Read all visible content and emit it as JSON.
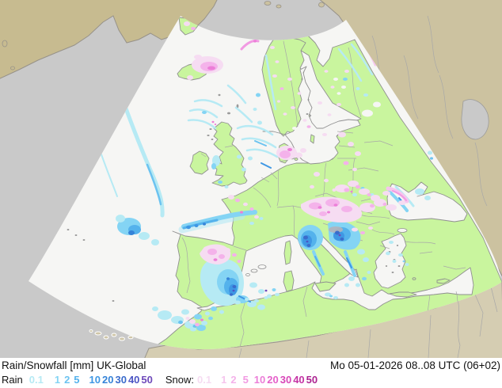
{
  "legend": {
    "title": "Rain/Snowfall",
    "units": "[mm]",
    "model": "UK-Global",
    "datetime": "Mo 05-01-2026 08..08 UTC (06+02)",
    "rain_label": "Rain",
    "snow_label": "Snow:",
    "rain_scale": [
      {
        "value": "0.1",
        "color": "#b6eaf4"
      },
      {
        "value": "1",
        "color": "#84d4f4"
      },
      {
        "value": "2",
        "color": "#6cc3f0"
      },
      {
        "value": "5",
        "color": "#54b2ec"
      },
      {
        "value": "10",
        "color": "#3e97e4"
      },
      {
        "value": "20",
        "color": "#3583d8"
      },
      {
        "value": "30",
        "color": "#3a6ccc"
      },
      {
        "value": "40",
        "color": "#4c55c4"
      },
      {
        "value": "50",
        "color": "#6e49ba"
      }
    ],
    "snow_scale": [
      {
        "value": "0.1",
        "color": "#f6dcf2"
      },
      {
        "value": "1",
        "color": "#f6c6ee"
      },
      {
        "value": "2",
        "color": "#f4b2ea"
      },
      {
        "value": "5",
        "color": "#f19ae2"
      },
      {
        "value": "10",
        "color": "#ec7ed8"
      },
      {
        "value": "20",
        "color": "#e560ca"
      },
      {
        "value": "30",
        "color": "#d846b8"
      },
      {
        "value": "40",
        "color": "#c433a4"
      },
      {
        "value": "50",
        "color": "#ad2492"
      }
    ]
  },
  "map": {
    "region": "Europe / North Atlantic model domain fan",
    "colors": {
      "sea_outside": "#c9c9c9",
      "land_outside_north": "#ccc2a0",
      "land_outside_greenland": "#c7bb90",
      "land_outside_south": "#d5cdb2",
      "sea_inside": "#f6f6f4",
      "land_inside": "#c9f59e",
      "coastline": "#909090",
      "country_border": "#a8a8a8"
    }
  }
}
